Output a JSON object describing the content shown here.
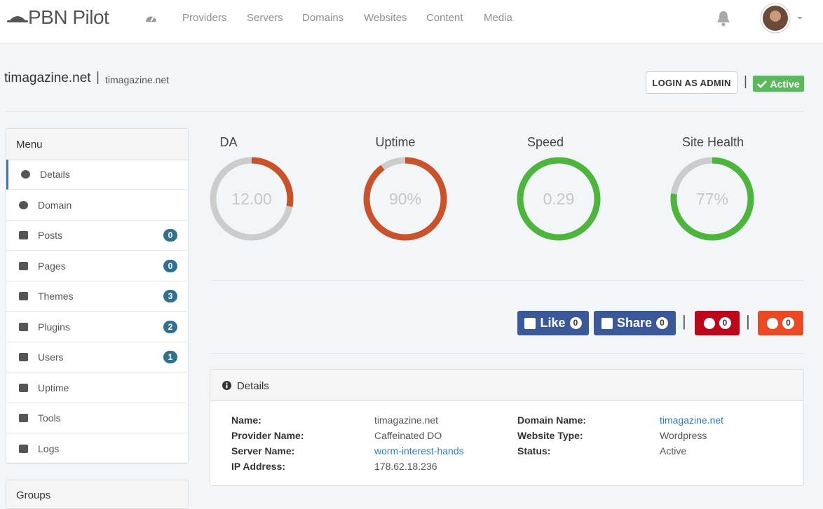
{
  "brand": "PBN Pilot",
  "nav": [
    "Providers",
    "Servers",
    "Domains",
    "Websites",
    "Content",
    "Media"
  ],
  "site": {
    "title": "timagazine.net",
    "subtitle": "timagazine.net"
  },
  "login_button": "LOGIN AS ADMIN",
  "status_badge": "Active",
  "menu": {
    "title": "Menu",
    "items": [
      {
        "label": "Details"
      },
      {
        "label": "Domain"
      },
      {
        "label": "Posts",
        "count": 0
      },
      {
        "label": "Pages",
        "count": 0
      },
      {
        "label": "Themes",
        "count": 3
      },
      {
        "label": "Plugins",
        "count": 2
      },
      {
        "label": "Users",
        "count": 1
      },
      {
        "label": "Uptime"
      },
      {
        "label": "Tools"
      },
      {
        "label": "Logs"
      }
    ]
  },
  "groups_title": "Groups",
  "gauges": [
    {
      "title": "DA",
      "value": "12.00"
    },
    {
      "title": "Uptime",
      "value": "90%"
    },
    {
      "title": "Speed",
      "value": "0.29"
    },
    {
      "title": "Site Health",
      "value": "77%"
    }
  ],
  "social": [
    {
      "label": "Like",
      "count": 0
    },
    {
      "label": "Share",
      "count": 0
    },
    {
      "count": 0
    },
    {
      "count": 0
    }
  ],
  "details": {
    "title": "Details",
    "rows": [
      [
        "Name:",
        "timagazine.net",
        "Domain Name:",
        "timagazine.net"
      ],
      [
        "Provider Name:",
        "Caffeinated DO",
        "Website Type:",
        "Wordpress"
      ],
      [
        "Server Name:",
        "worm-interest-hands",
        "Status:",
        "Active"
      ],
      [
        "IP Address:",
        "178.62.18.236"
      ]
    ]
  }
}
